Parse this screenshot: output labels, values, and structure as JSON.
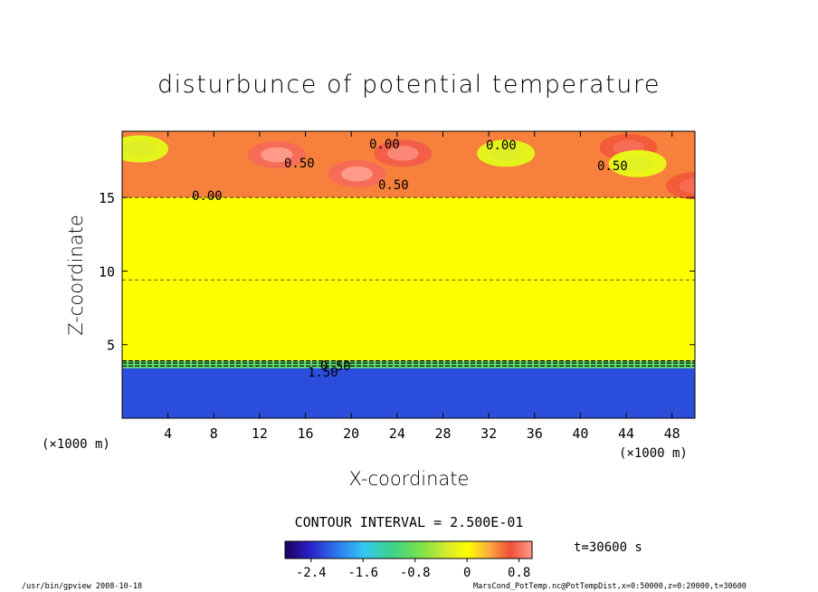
{
  "chart_data": {
    "type": "heatmap",
    "title": "disturbunce of potential temperature",
    "xlabel": "X-coordinate",
    "ylabel": "Z-coordinate",
    "x_unit": "(×1000 m)",
    "x_unit_right": "(×1000 m)",
    "xlim": [
      0,
      50
    ],
    "ylim": [
      0,
      19.5
    ],
    "x_ticks": [
      4,
      8,
      12,
      16,
      20,
      24,
      28,
      32,
      36,
      40,
      44,
      48
    ],
    "y_ticks": [
      5,
      10,
      15
    ],
    "contour_interval_text": "CONTOUR INTERVAL = 2.500E-01",
    "contour_labels": [
      "0.00",
      "0.00",
      "0.00",
      "0.50",
      "0.50",
      "0.50",
      "0.50",
      "1.50"
    ],
    "colorbar": {
      "min": -2.8,
      "max": 1.0,
      "ticks": [
        "-2.4",
        "-1.6",
        "-0.8",
        "0",
        "0.8"
      ],
      "tick_values": [
        -2.4,
        -1.6,
        -0.8,
        0,
        0.8
      ]
    },
    "time_label": "t=30600 s",
    "layers": [
      {
        "z_from": 0,
        "z_to": 3.4,
        "value": -2.2
      },
      {
        "z_from": 3.4,
        "z_to": 3.9,
        "value": -1.0
      },
      {
        "z_from": 3.9,
        "z_to": 15.0,
        "value": 0.0
      },
      {
        "z_from": 15.0,
        "z_to": 19.5,
        "value": 0.45
      }
    ],
    "hotspots": [
      {
        "x": 13.5,
        "z": 17.9,
        "value": 1.0
      },
      {
        "x": 20.5,
        "z": 16.6,
        "value": 1.0
      },
      {
        "x": 24.5,
        "z": 18.0,
        "value": 0.9
      },
      {
        "x": 44.2,
        "z": 18.4,
        "value": 0.75
      },
      {
        "x": 50.0,
        "z": 15.8,
        "value": 0.75
      },
      {
        "x": 1.5,
        "z": 18.3,
        "value": -0.35
      },
      {
        "x": 33.5,
        "z": 18.0,
        "value": -0.35
      },
      {
        "x": 45.0,
        "z": 17.3,
        "value": -0.3
      }
    ]
  },
  "footer": {
    "left": "/usr/bin/gpview  2008-10-18",
    "right": "MarsCond_PotTemp.nc@PotTempDist,x=0:50000,z=0:20000,t=30600"
  }
}
